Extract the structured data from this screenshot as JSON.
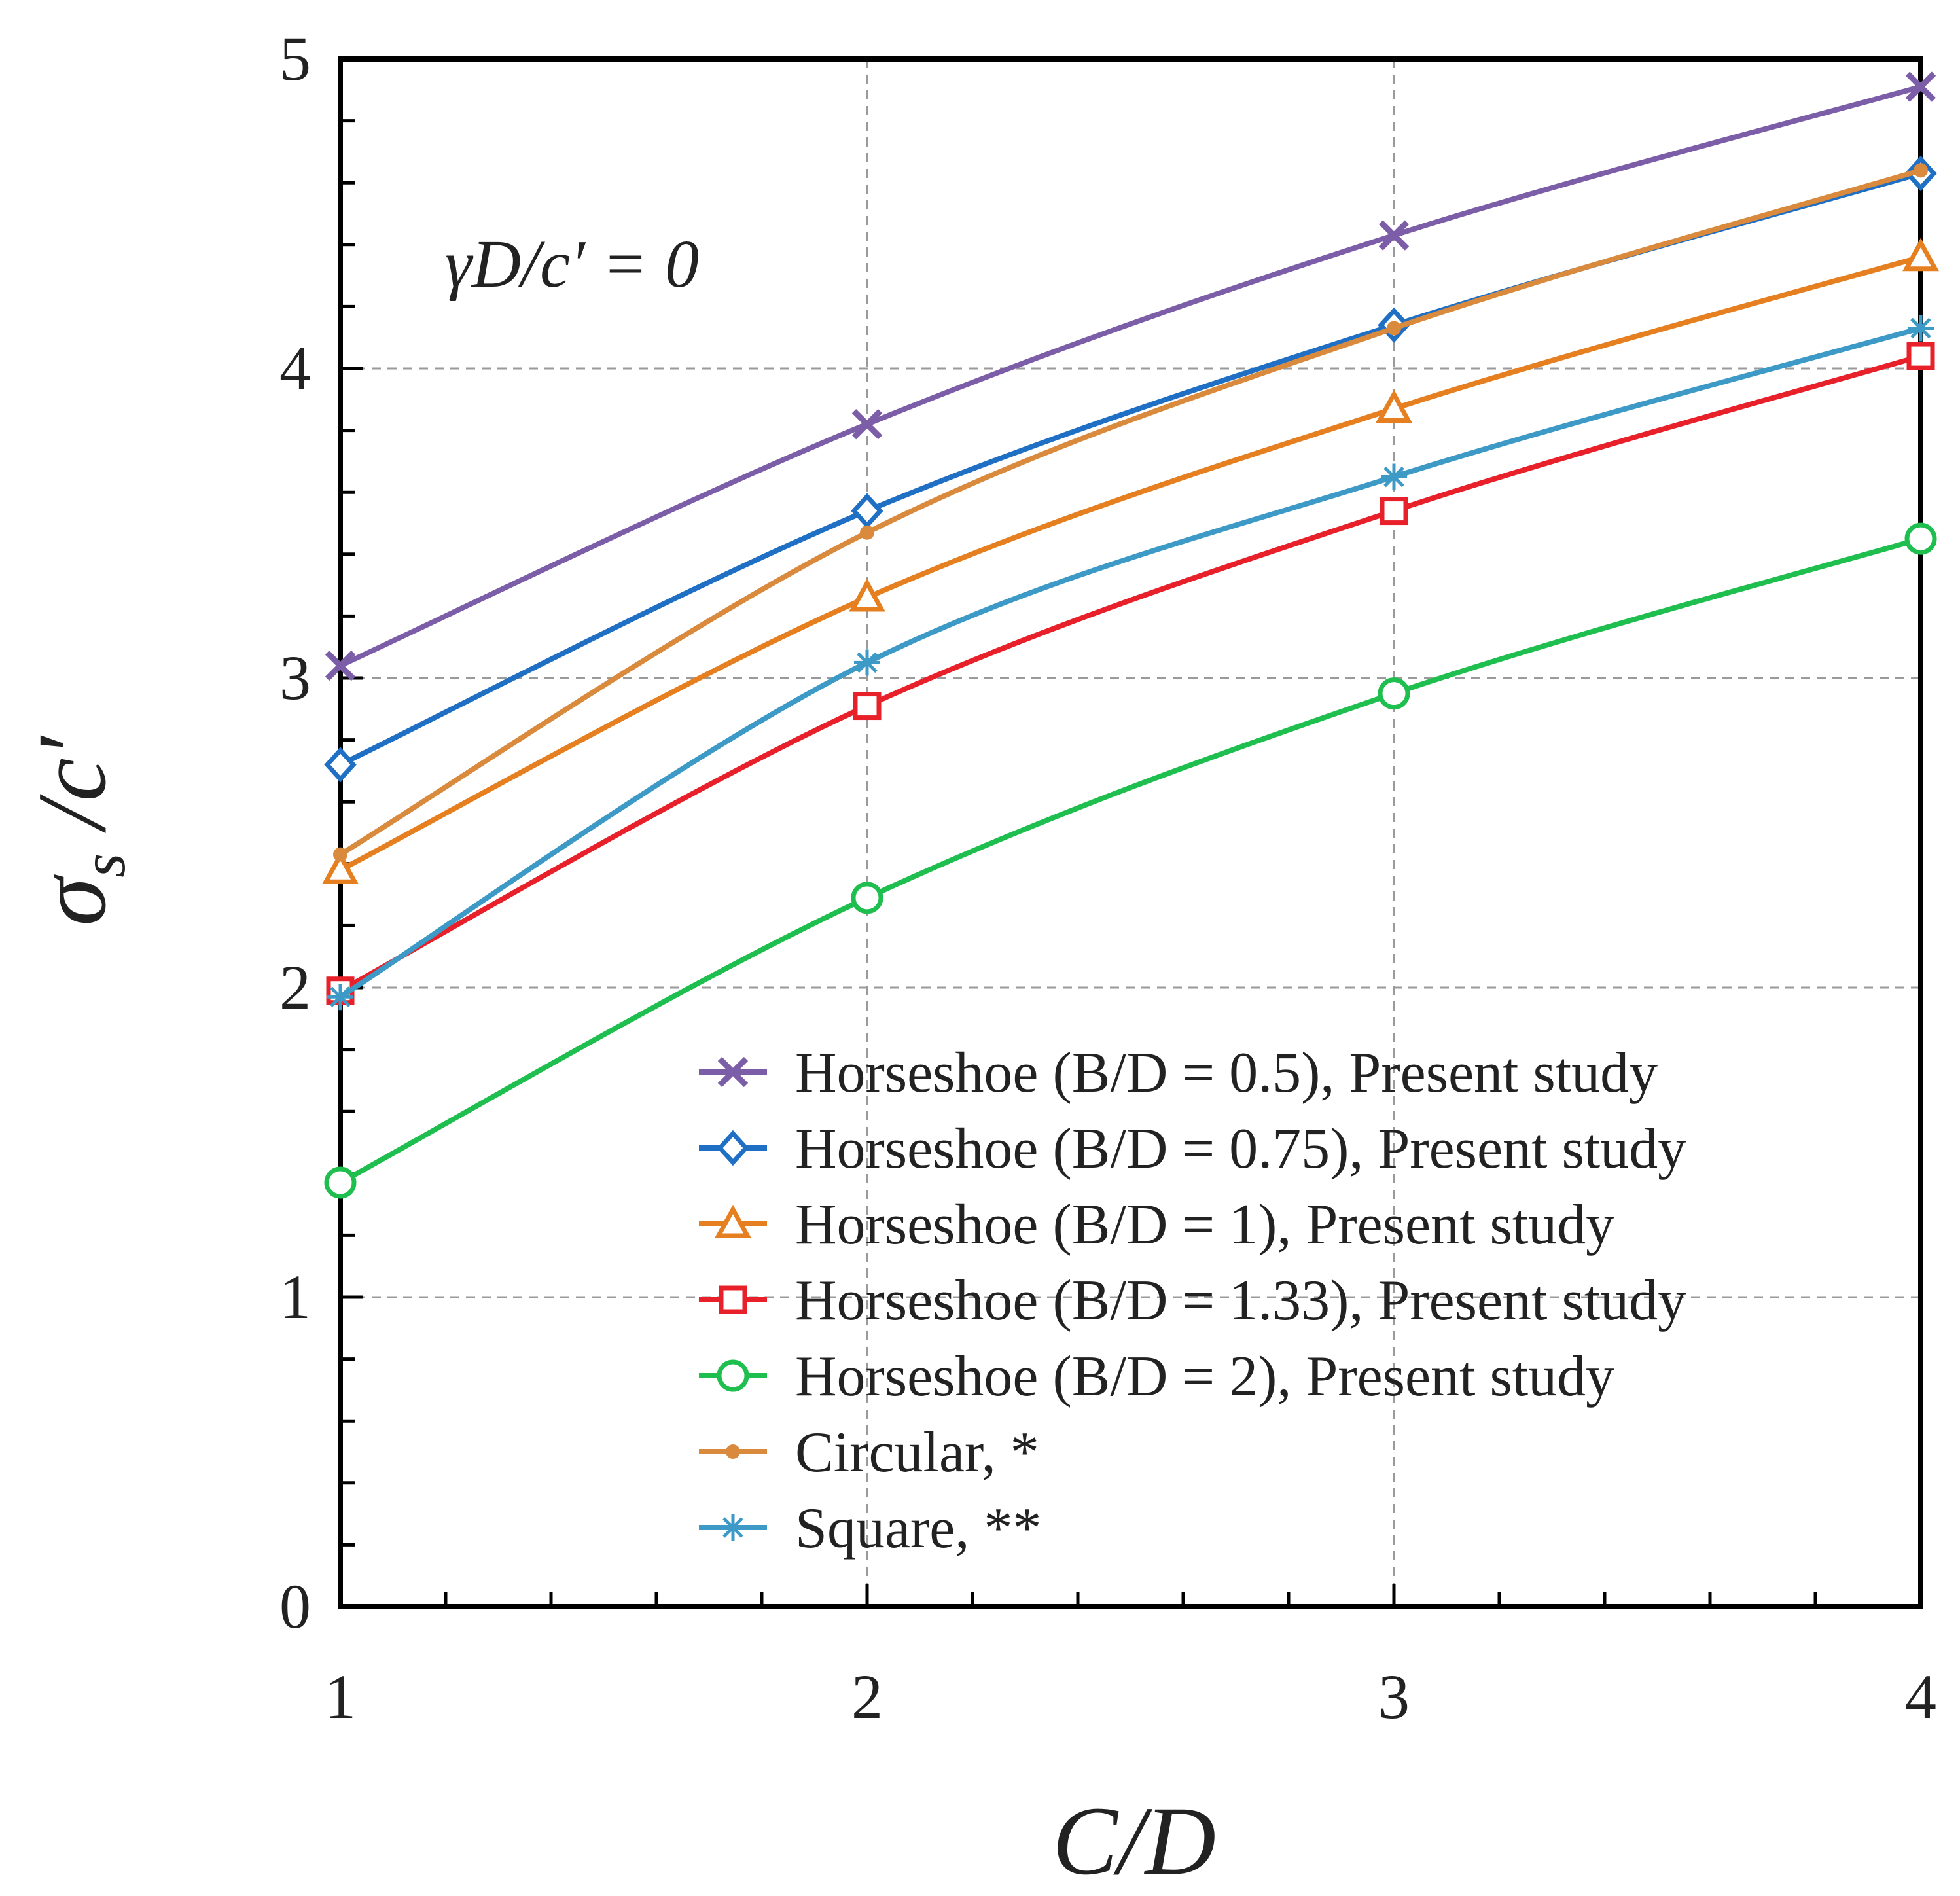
{
  "chart_data": {
    "type": "line",
    "title": "",
    "xlabel": "C/D",
    "ylabel": "σs /c′",
    "ylabel_main": "σ",
    "ylabel_sub": "s",
    "ylabel_rest": " /c′",
    "annotation": "γD/c′ = 0",
    "x": [
      1,
      2,
      3,
      4
    ],
    "xlim": [
      1,
      4
    ],
    "ylim": [
      0,
      5
    ],
    "xticks": [
      1,
      2,
      3,
      4
    ],
    "yticks": [
      0,
      1,
      2,
      3,
      4,
      5
    ],
    "grid": true,
    "legend_position": "bottom-right",
    "series": [
      {
        "name": "Horseshoe (B/D = 0.5), Present study",
        "marker": "x",
        "color": "#7b5ea7",
        "values": [
          3.04,
          3.82,
          4.43,
          4.91
        ]
      },
      {
        "name": "Horseshoe (B/D = 0.75), Present study",
        "marker": "diamond",
        "color": "#1f6fc4",
        "values": [
          2.72,
          3.54,
          4.14,
          4.63
        ]
      },
      {
        "name": "Horseshoe (B/D = 1), Present study",
        "marker": "triangle",
        "color": "#e57f1f",
        "values": [
          2.38,
          3.26,
          3.87,
          4.36
        ]
      },
      {
        "name": "Horseshoe (B/D = 1.33), Present study",
        "marker": "square",
        "color": "#e8202a",
        "values": [
          1.99,
          2.91,
          3.54,
          4.04
        ]
      },
      {
        "name": "Horseshoe (B/D = 2), Present study",
        "marker": "circle",
        "color": "#1fbf4f",
        "values": [
          1.37,
          2.29,
          2.95,
          3.45
        ]
      },
      {
        "name": "Circular, *",
        "marker": "dot",
        "color": "#d98a3c",
        "values": [
          2.43,
          3.47,
          4.13,
          4.64
        ]
      },
      {
        "name": "Square, **",
        "marker": "asterisk",
        "color": "#3d9ac6",
        "values": [
          1.97,
          3.05,
          3.65,
          4.13
        ]
      }
    ]
  }
}
